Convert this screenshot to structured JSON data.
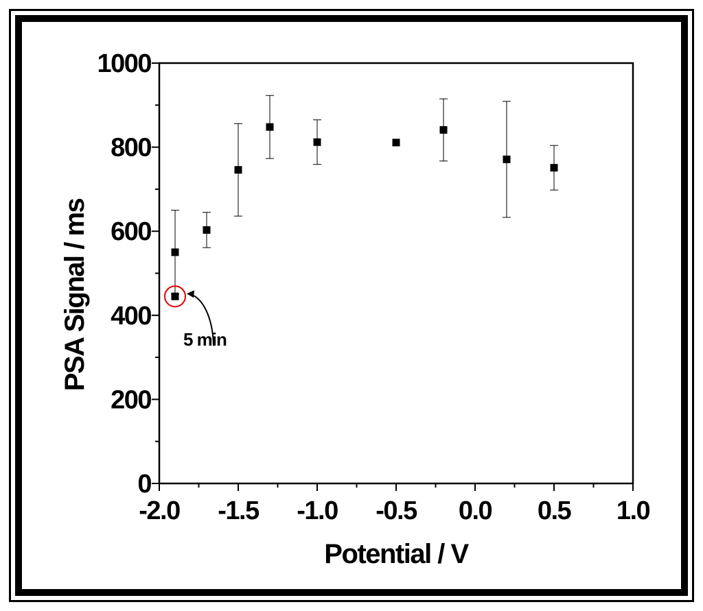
{
  "chart_data": {
    "type": "scatter",
    "title": "",
    "xlabel": "Potential / V",
    "ylabel": "PSA Signal / ms",
    "xlim": [
      -2.0,
      1.0
    ],
    "ylim": [
      0,
      1000
    ],
    "xticks": [
      "-2.0",
      "-1.5",
      "-1.0",
      "-0.5",
      "0.0",
      "0.5",
      "1.0"
    ],
    "yticks": [
      "0",
      "200",
      "400",
      "600",
      "800",
      "1000"
    ],
    "grid": false,
    "series": [
      {
        "points": [
          {
            "x": -1.9,
            "y": 550,
            "err": 100
          },
          {
            "x": -1.7,
            "y": 603,
            "err": 42
          },
          {
            "x": -1.5,
            "y": 746,
            "err": 110
          },
          {
            "x": -1.3,
            "y": 848,
            "err": 75
          },
          {
            "x": -1.0,
            "y": 812,
            "err": 53
          },
          {
            "x": -0.5,
            "y": 811,
            "err": 0
          },
          {
            "x": -0.2,
            "y": 841,
            "err": 74
          },
          {
            "x": 0.2,
            "y": 771,
            "err": 138
          },
          {
            "x": 0.5,
            "y": 751,
            "err": 53
          }
        ]
      }
    ],
    "highlight": {
      "x": -1.9,
      "y": 445,
      "label": "5 min",
      "color": "#e00000"
    }
  }
}
